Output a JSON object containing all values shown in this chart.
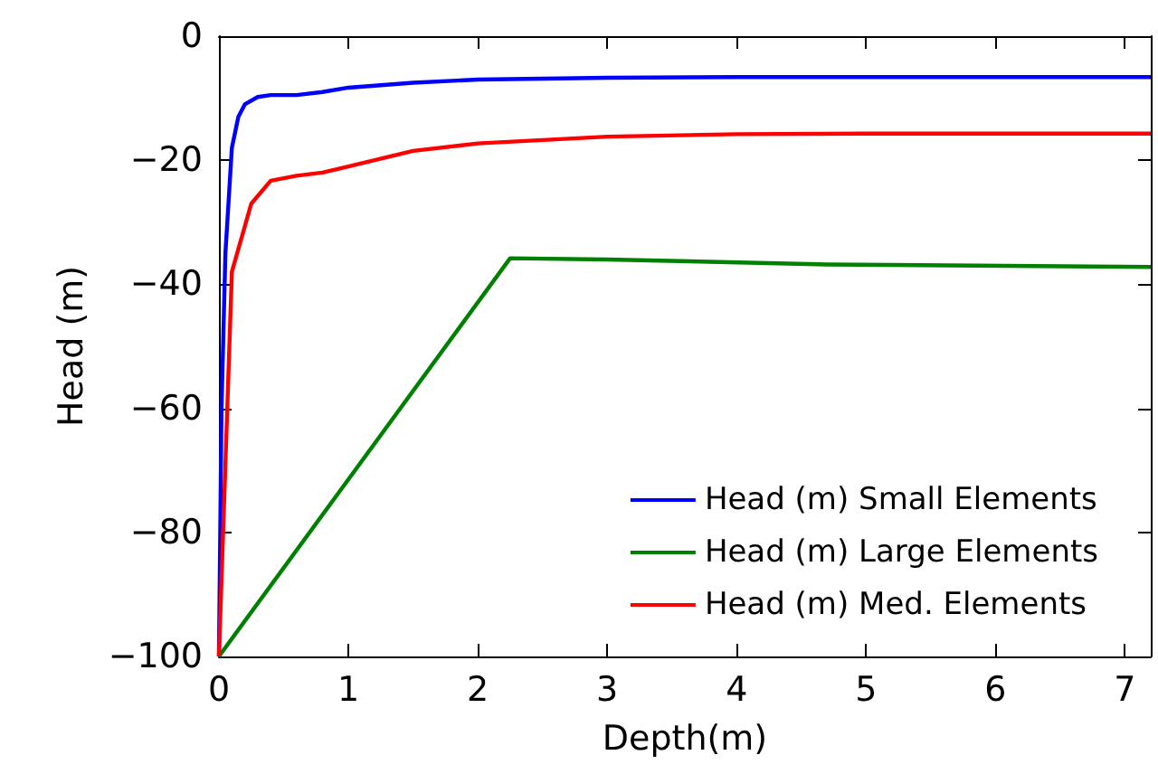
{
  "chart_data": {
    "type": "line",
    "xlabel": "Depth(m)",
    "ylabel": "Head (m)",
    "xlim": [
      0,
      7.2
    ],
    "xticks": [
      0,
      1,
      2,
      3,
      4,
      5,
      6,
      7
    ],
    "ylim": [
      -100,
      0
    ],
    "yticks": [
      -100,
      -80,
      -60,
      -40,
      -20,
      0
    ],
    "grid": false,
    "legend": "bottom right",
    "marker": "none",
    "line_style": "solid",
    "series": [
      {
        "name": "Head (m) Small Elements",
        "color": "#0000ff",
        "x": [
          0,
          0.02,
          0.05,
          0.1,
          0.15,
          0.2,
          0.3,
          0.4,
          0.6,
          0.8,
          1,
          1.5,
          2,
          3,
          4,
          5,
          6,
          7.2
        ],
        "values": [
          -100,
          -60,
          -35,
          -18,
          -13,
          -11,
          -9.8,
          -9.5,
          -9.5,
          -9,
          -8.3,
          -7.5,
          -7,
          -6.7,
          -6.6,
          -6.6,
          -6.6,
          -6.6
        ]
      },
      {
        "name": "Head (m) Large Elements",
        "color": "#008000",
        "x": [
          0,
          2.25,
          3,
          4.7,
          7.2
        ],
        "values": [
          -100,
          -35.8,
          -36,
          -36.8,
          -37.2
        ]
      },
      {
        "name": "Head (m) Med. Elements",
        "color": "#ff0000",
        "x": [
          0,
          0.1,
          0.25,
          0.4,
          0.6,
          0.8,
          1,
          1.5,
          2,
          3,
          4,
          5,
          6,
          7.2
        ],
        "values": [
          -100,
          -38,
          -27,
          -23.3,
          -22.5,
          -22,
          -21,
          -18.5,
          -17.3,
          -16.2,
          -15.8,
          -15.7,
          -15.7,
          -15.7
        ]
      }
    ]
  }
}
